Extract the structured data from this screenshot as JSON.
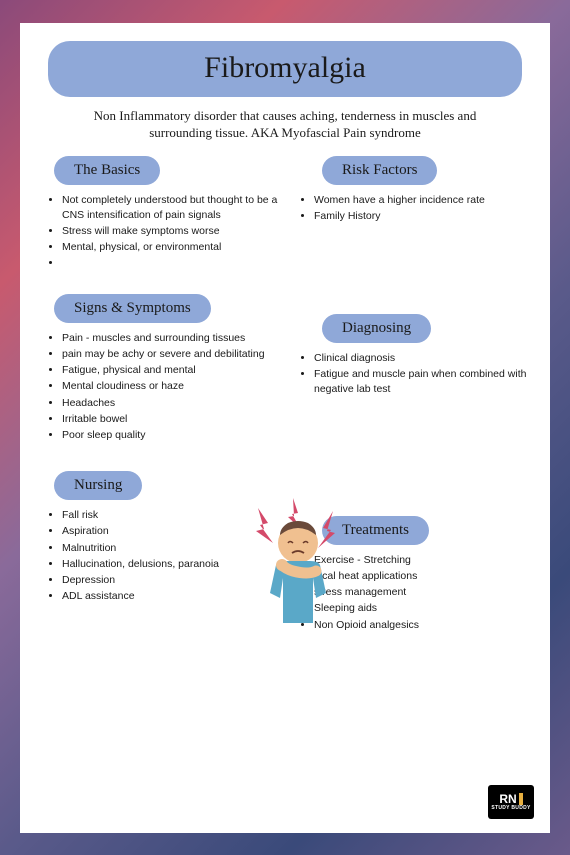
{
  "colors": {
    "pill_bg": "#8fa8d8",
    "page_bg": "#ffffff",
    "text": "#1a1a1a",
    "bolt": "#d44a6a",
    "shirt": "#5aa8c8",
    "skin": "#f0c090",
    "hair": "#6a4a3a"
  },
  "title": "Fibromyalgia",
  "subtitle": "Non Inflammatory disorder that causes aching, tenderness in muscles and surrounding tissue. AKA Myofascial Pain syndrome",
  "sections": {
    "basics": {
      "heading": "The Basics",
      "items": [
        "Not completely understood but thought to be a CNS intensification of pain signals",
        "Stress will make symptoms worse",
        "Mental, physical, or environmental",
        ""
      ]
    },
    "risk": {
      "heading": "Risk Factors",
      "items": [
        "Women have a higher incidence rate",
        "Family History"
      ]
    },
    "signs": {
      "heading": "Signs & Symptoms",
      "items": [
        "Pain - muscles and surrounding tissues",
        "pain may be achy or severe and debilitating",
        "Fatigue, physical and mental",
        "Mental cloudiness or haze",
        "Headaches",
        "Irritable bowel",
        "Poor sleep quality"
      ]
    },
    "diagnosing": {
      "heading": "Diagnosing",
      "items": [
        "Clinical diagnosis",
        "Fatigue and muscle pain when combined with negative lab test"
      ]
    },
    "nursing": {
      "heading": "Nursing",
      "items": [
        "Fall risk",
        "Aspiration",
        "Malnutrition",
        "Hallucination, delusions, paranoia",
        "Depression",
        "ADL assistance"
      ]
    },
    "treatments": {
      "heading": "Treatments",
      "items": [
        "Exercise - Stretching",
        "local heat applications",
        "stress management",
        "Sleeping aids",
        "Non Opioid analgesics"
      ]
    }
  },
  "logo": {
    "line1": "RN",
    "line2": "STUDY BUDDY"
  }
}
